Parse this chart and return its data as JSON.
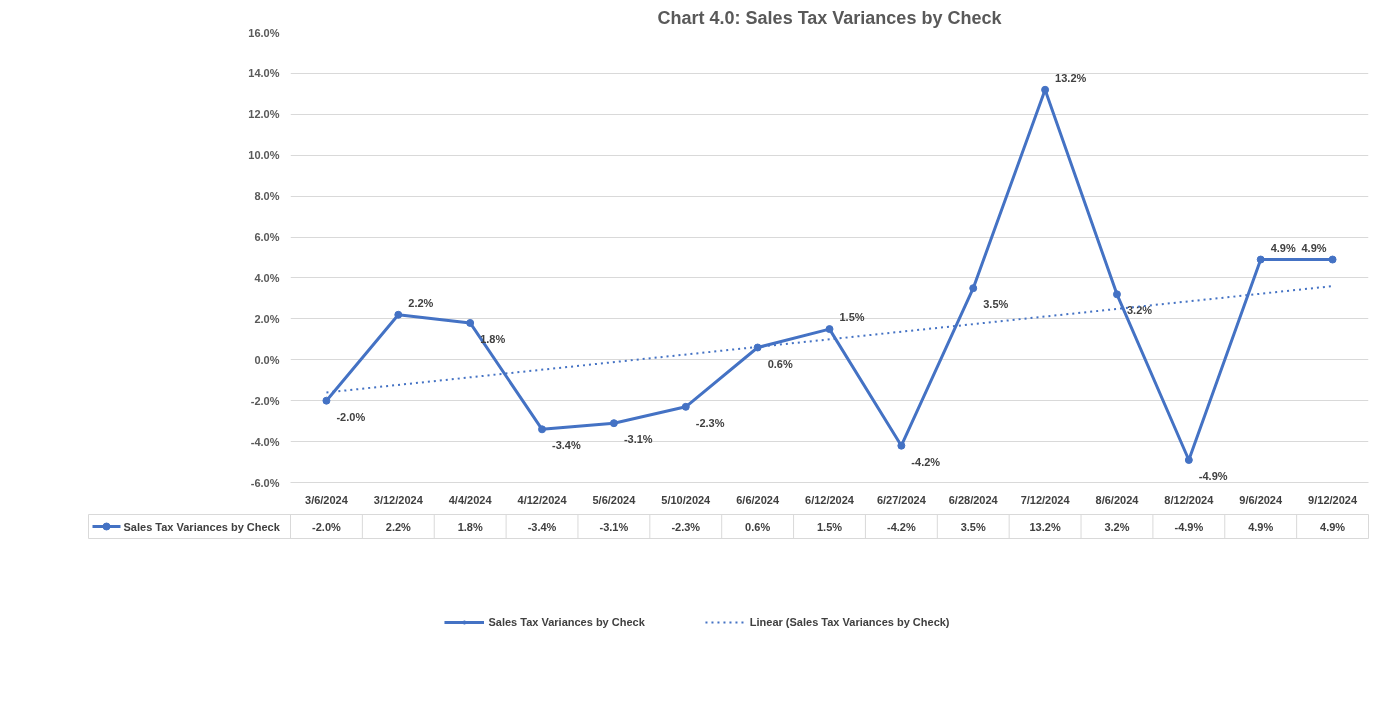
{
  "chart_data": {
    "type": "line",
    "title": "Chart 4.0: Sales Tax Variances by Check",
    "categories": [
      "3/6/2024",
      "3/12/2024",
      "4/4/2024",
      "4/12/2024",
      "5/6/2024",
      "5/10/2024",
      "6/6/2024",
      "6/12/2024",
      "6/27/2024",
      "6/28/2024",
      "7/12/2024",
      "8/6/2024",
      "8/12/2024",
      "9/6/2024",
      "9/12/2024"
    ],
    "series": [
      {
        "name": "Sales Tax Variances by Check",
        "color": "#4472c4",
        "marker": "circle",
        "values": [
          -2.0,
          2.2,
          1.8,
          -3.4,
          -3.1,
          -2.3,
          0.6,
          1.5,
          -4.2,
          3.5,
          13.2,
          3.2,
          -4.9,
          4.9,
          4.9
        ],
        "value_labels": [
          "-2.0%",
          "2.2%",
          "1.8%",
          "-3.4%",
          "-3.1%",
          "-2.3%",
          "0.6%",
          "1.5%",
          "-4.2%",
          "3.5%",
          "13.2%",
          "3.2%",
          "-4.9%",
          "4.9%",
          "4.9%"
        ]
      },
      {
        "name": "Linear (Sales Tax Variances by Check)",
        "type": "line",
        "color": "#4472c4",
        "line_style": "dotted",
        "marker": "none",
        "x": [
          "3/6/2024",
          "9/12/2024"
        ],
        "values": [
          -1.6,
          3.6
        ]
      }
    ],
    "ylim": [
      -6,
      16
    ],
    "yticks": [
      {
        "value": -6,
        "label": "-6.0%"
      },
      {
        "value": -4,
        "label": "-4.0%"
      },
      {
        "value": -2,
        "label": "-2.0%"
      },
      {
        "value": 0,
        "label": "0.0%"
      },
      {
        "value": 2,
        "label": "2.0%"
      },
      {
        "value": 4,
        "label": "4.0%"
      },
      {
        "value": 6,
        "label": "6.0%"
      },
      {
        "value": 8,
        "label": "8.0%"
      },
      {
        "value": 10,
        "label": "10.0%"
      },
      {
        "value": 12,
        "label": "12.0%"
      },
      {
        "value": 14,
        "label": "14.0%"
      },
      {
        "value": 16,
        "label": "16.0%"
      }
    ],
    "grid": "y",
    "legend": "bottom"
  }
}
